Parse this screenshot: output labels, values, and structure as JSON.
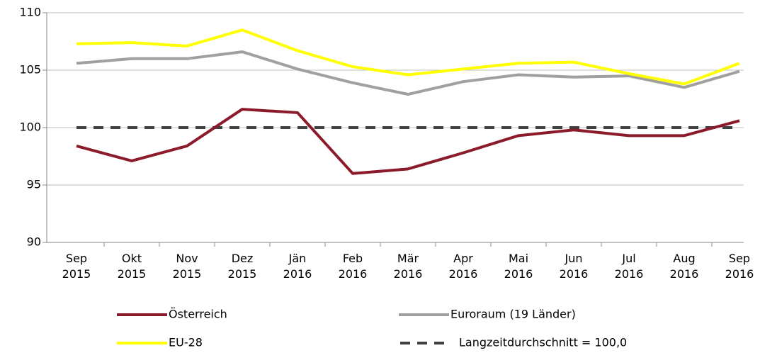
{
  "chart_data": {
    "type": "line",
    "categories": [
      "Sep 2015",
      "Okt 2015",
      "Nov 2015",
      "Dez 2015",
      "Jän 2016",
      "Feb 2016",
      "Mär 2016",
      "Apr 2016",
      "Mai 2016",
      "Jun 2016",
      "Jul 2016",
      "Aug 2016",
      "Sep 2016"
    ],
    "series": [
      {
        "name": "Österreich",
        "color": "#8b1a2b",
        "values": [
          98.4,
          97.1,
          98.4,
          101.6,
          101.3,
          96.0,
          96.4,
          97.8,
          99.3,
          99.8,
          99.3,
          99.3,
          100.6
        ]
      },
      {
        "name": "Euroraum (19 Länder)",
        "color": "#a0a0a0",
        "values": [
          105.6,
          106.0,
          106.0,
          106.6,
          105.1,
          103.9,
          102.9,
          104.0,
          104.6,
          104.4,
          104.5,
          103.5,
          104.9
        ]
      },
      {
        "name": "EU-28",
        "color": "#ffff00",
        "values": [
          107.3,
          107.4,
          107.1,
          108.5,
          106.7,
          105.3,
          104.6,
          105.1,
          105.6,
          105.7,
          104.7,
          103.8,
          105.6
        ]
      },
      {
        "name": "Langzeitdurchschnitt = 100,0",
        "color": "#404040",
        "dash": true,
        "values": [
          100,
          100,
          100,
          100,
          100,
          100,
          100,
          100,
          100,
          100,
          100,
          100,
          100
        ]
      }
    ],
    "ylim": [
      90,
      110
    ],
    "yticks": [
      90,
      95,
      100,
      105,
      110
    ],
    "grid": true
  }
}
